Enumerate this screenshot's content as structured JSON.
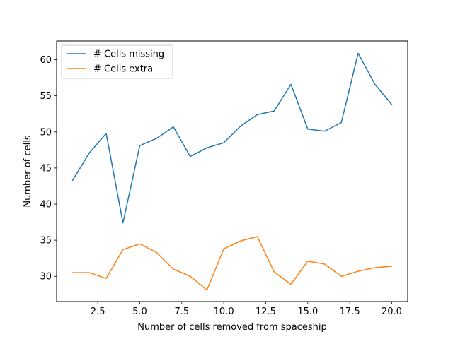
{
  "chart_data": {
    "type": "line",
    "title": "",
    "xlabel": "Number of cells removed from spaceship",
    "ylabel": "Number of cells",
    "xlim": [
      0.05,
      20.95
    ],
    "ylim": [
      26.5,
      62.6
    ],
    "xticks": [
      2.5,
      5.0,
      7.5,
      10.0,
      12.5,
      15.0,
      17.5,
      20.0
    ],
    "xtick_labels": [
      "2.5",
      "5.0",
      "7.5",
      "10.0",
      "12.5",
      "15.0",
      "17.5",
      "20.0"
    ],
    "yticks": [
      30,
      35,
      40,
      45,
      50,
      55,
      60
    ],
    "ytick_labels": [
      "30",
      "35",
      "40",
      "45",
      "50",
      "55",
      "60"
    ],
    "grid": false,
    "legend_position": "top-left",
    "x": [
      1,
      2,
      3,
      4,
      5,
      6,
      7,
      8,
      9,
      10,
      11,
      12,
      13,
      14,
      15,
      16,
      17,
      18,
      19,
      20
    ],
    "series": [
      {
        "name": "# Cells missing",
        "color": "#1f77b4",
        "values": [
          43.3,
          47.1,
          49.8,
          37.4,
          48.1,
          49.1,
          50.7,
          46.6,
          47.8,
          48.5,
          50.8,
          52.4,
          52.9,
          56.6,
          50.4,
          50.1,
          51.3,
          60.9,
          56.6,
          53.8
        ]
      },
      {
        "name": "# Cells extra",
        "color": "#ff7f0e",
        "values": [
          30.5,
          30.5,
          29.7,
          33.7,
          34.5,
          33.3,
          31.0,
          30.0,
          28.1,
          33.8,
          34.9,
          35.5,
          30.6,
          28.9,
          32.1,
          31.7,
          30.0,
          30.7,
          31.2,
          31.4
        ]
      }
    ]
  }
}
